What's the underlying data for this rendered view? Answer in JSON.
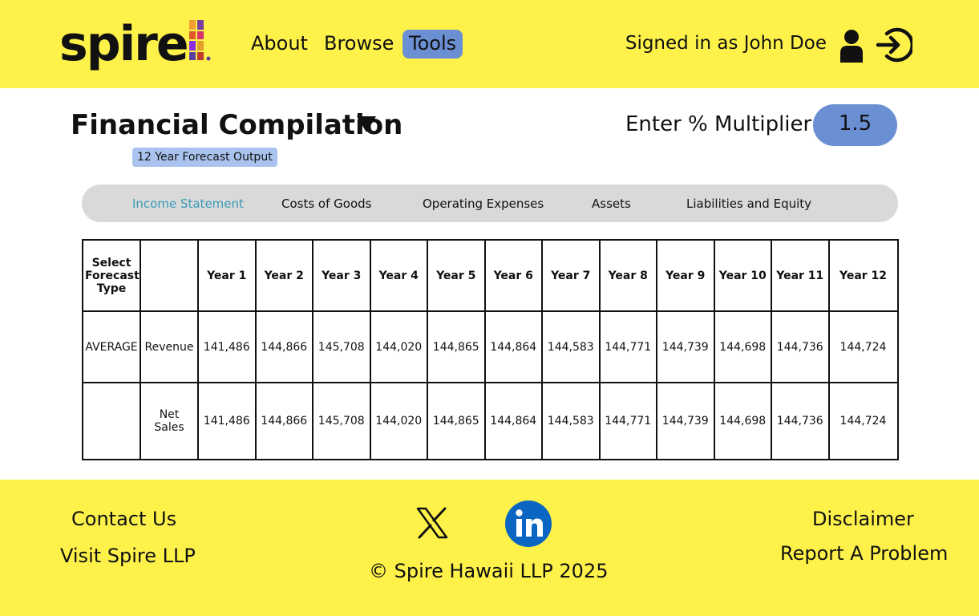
{
  "brand": {
    "name": "spire"
  },
  "nav": {
    "about": "About",
    "browse": "Browse",
    "tools": "Tools"
  },
  "user": {
    "signed_in_text": "Signed in as John Doe"
  },
  "icons": {
    "user": "user-icon",
    "sign_in": "sign-in-icon",
    "dropdown": "caret-down-icon",
    "x": "x-logo-icon",
    "linkedin": "linkedin-icon"
  },
  "page": {
    "title": "Financial Compilation",
    "subtitle": "12 Year Forecast Output",
    "multiplier_label": "Enter % Multiplier:",
    "multiplier_value": "1.5"
  },
  "tabs": [
    {
      "label": "Income Statement",
      "active": true
    },
    {
      "label": "Costs of Goods",
      "active": false
    },
    {
      "label": "Operating Expenses",
      "active": false
    },
    {
      "label": "Assets",
      "active": false
    },
    {
      "label": "Liabilities and Equity",
      "active": false
    }
  ],
  "table": {
    "headers": [
      "Select Forecast Type",
      "",
      "Year 1",
      "Year 2",
      "Year 3",
      "Year 4",
      "Year 5",
      "Year 6",
      "Year 7",
      "Year 8",
      "Year 9",
      "Year 10",
      "Year 11",
      "Year 12"
    ],
    "rows": [
      {
        "type": "AVERAGE",
        "label": "Revenue",
        "values": [
          "141,486",
          "144,866",
          "145,708",
          "144,020",
          "144,865",
          "144,864",
          "144,583",
          "144,771",
          "144,739",
          "144,698",
          "144,736",
          "144,724"
        ]
      },
      {
        "type": "",
        "label": "Net Sales",
        "values": [
          "141,486",
          "144,866",
          "145,708",
          "144,020",
          "144,865",
          "144,864",
          "144,583",
          "144,771",
          "144,739",
          "144,698",
          "144,736",
          "144,724"
        ]
      }
    ]
  },
  "footer": {
    "contact": "Contact Us",
    "visit": "Visit Spire LLP",
    "copyright": "© Spire Hawaii LLP 2025",
    "disclaimer": "Disclaimer",
    "report": "Report A Problem"
  },
  "colors": {
    "yellow": "#fef24a",
    "blue": "#6b8fd3",
    "badge": "#a9c3ee",
    "active_tab": "#3a9bb8",
    "tab_bg": "#d9d9d9",
    "linkedin": "#0a66c2"
  }
}
